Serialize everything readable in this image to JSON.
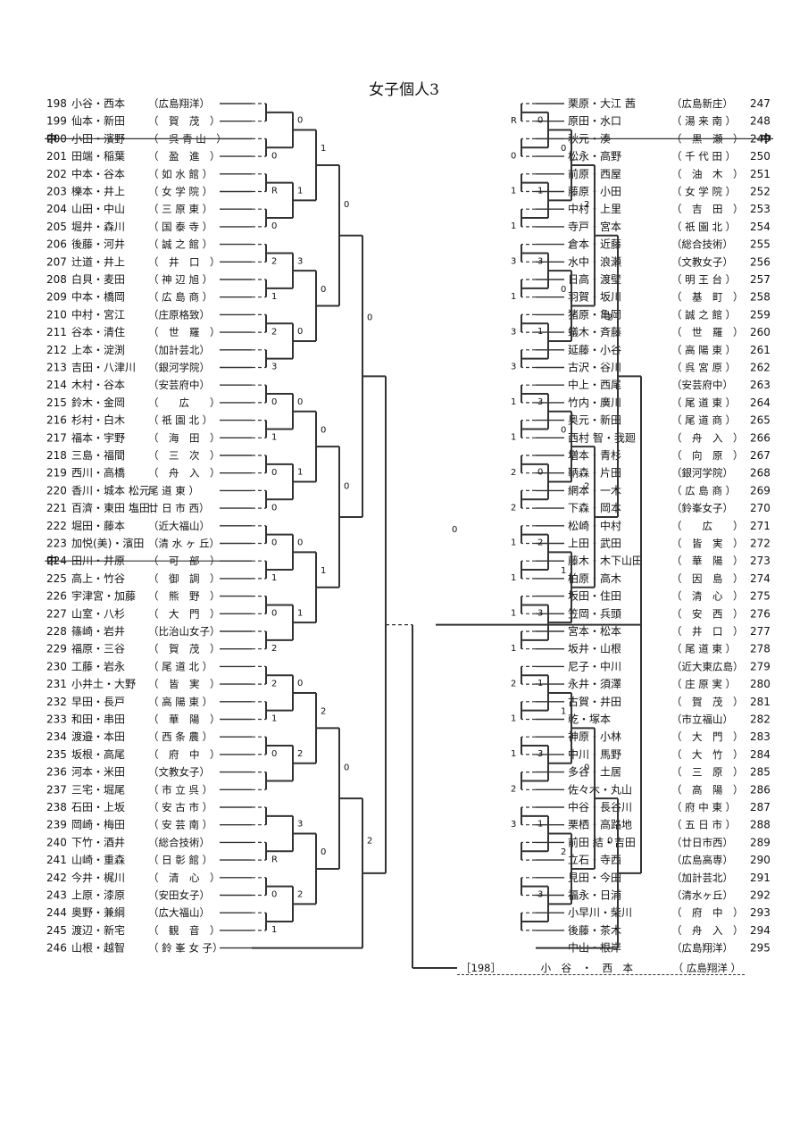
{
  "title": "女子個人3",
  "left": [
    {
      "num": "198",
      "names": "小谷・西本",
      "school": "（広島翔洋）"
    },
    {
      "num": "199",
      "names": "仙本・新田",
      "school": "（　賀　茂　）"
    },
    {
      "num": "200",
      "names": "小田・濱野",
      "school": "（　呉 青 山　）",
      "mark": "中",
      "struck": true
    },
    {
      "num": "201",
      "names": "田端・稲葉",
      "school": "（　盈　進　）"
    },
    {
      "num": "202",
      "names": "中本・谷本",
      "school": "（ 如 水 館 ）"
    },
    {
      "num": "203",
      "names": "櫟本・井上",
      "school": "（ 女 学 院 ）"
    },
    {
      "num": "204",
      "names": "山田・中山",
      "school": "（ 三 原 東 ）"
    },
    {
      "num": "205",
      "names": "堀井・森川",
      "school": "（ 国 泰 寺 ）"
    },
    {
      "num": "206",
      "names": "後藤・河井",
      "school": "（ 誠 之 館 ）"
    },
    {
      "num": "207",
      "names": "辻道・井上",
      "school": "（　井　口　）"
    },
    {
      "num": "208",
      "names": "白貝・麦田",
      "school": "（ 神 辺 旭 ）"
    },
    {
      "num": "209",
      "names": "中本・橋岡",
      "school": "（ 広 島 商 ）"
    },
    {
      "num": "210",
      "names": "中村・宮江",
      "school": "（庄原格致）"
    },
    {
      "num": "211",
      "names": "谷本・清住",
      "school": "（　世　羅　）"
    },
    {
      "num": "212",
      "names": "上本・淀渕",
      "school": "（加計芸北）"
    },
    {
      "num": "213",
      "names": "吉田・八津川",
      "school": "（銀河学院）"
    },
    {
      "num": "214",
      "names": "木村・谷本",
      "school": "（安芸府中）"
    },
    {
      "num": "215",
      "names": "鈴木・金岡",
      "school": "（　　広　　）"
    },
    {
      "num": "216",
      "names": "杉村・白木",
      "school": "（ 祇 園 北 ）"
    },
    {
      "num": "217",
      "names": "福本・宇野",
      "school": "（　海　田　）"
    },
    {
      "num": "218",
      "names": "三島・福間",
      "school": "（　三　次　）"
    },
    {
      "num": "219",
      "names": "西川・高橋",
      "school": "（　舟　入　）"
    },
    {
      "num": "220",
      "names": "香川・城本 松元",
      "school": "尾 道 東 ）"
    },
    {
      "num": "221",
      "names": "百濟・東田 塩田",
      "school": "廿 日 市 西）"
    },
    {
      "num": "222",
      "names": "堀田・藤本",
      "school": "（近大福山）"
    },
    {
      "num": "223",
      "names": "加悦(美)・濱田",
      "school": "（清 水 ヶ 丘）"
    },
    {
      "num": "224",
      "names": "田川・井原",
      "school": "（　可　部　）",
      "mark": "中",
      "struck": true
    },
    {
      "num": "225",
      "names": "高上・竹谷",
      "school": "（　御　調　）"
    },
    {
      "num": "226",
      "names": "宇津宮・加藤",
      "school": "（　熊　野　）"
    },
    {
      "num": "227",
      "names": "山室・八杉",
      "school": "（　大　門　）"
    },
    {
      "num": "228",
      "names": "篠崎・岩井",
      "school": "（比治山女子）"
    },
    {
      "num": "229",
      "names": "福原・三谷",
      "school": "（　賀　茂　）"
    },
    {
      "num": "230",
      "names": "工藤・岩永",
      "school": "（ 尾 道 北 ）"
    },
    {
      "num": "231",
      "names": "小井土・大野",
      "school": "（　皆　実　）"
    },
    {
      "num": "232",
      "names": "早田・長戸",
      "school": "（ 高 陽 東 ）"
    },
    {
      "num": "233",
      "names": "和田・串田",
      "school": "（　華　陽　）"
    },
    {
      "num": "234",
      "names": "渡邉・本田",
      "school": "（ 西 条 農 ）"
    },
    {
      "num": "235",
      "names": "坂根・高尾",
      "school": "（　府　中　）"
    },
    {
      "num": "236",
      "names": "河本・米田",
      "school": "（文教女子）"
    },
    {
      "num": "237",
      "names": "三宅・堀尾",
      "school": "（ 市 立 呉 ）"
    },
    {
      "num": "238",
      "names": "石田・上坂",
      "school": "（ 安 古 市 ）"
    },
    {
      "num": "239",
      "names": "岡崎・梅田",
      "school": "（ 安 芸 南 ）"
    },
    {
      "num": "240",
      "names": "下竹・酒井",
      "school": "（総合技術）"
    },
    {
      "num": "241",
      "names": "山崎・重森",
      "school": "（ 日 彰 館 ）"
    },
    {
      "num": "242",
      "names": "今井・梶川",
      "school": "（　清　心　）"
    },
    {
      "num": "243",
      "names": "上原・漆原",
      "school": "（安田女子）"
    },
    {
      "num": "244",
      "names": "奥野・兼綱",
      "school": "（広大福山）"
    },
    {
      "num": "245",
      "names": "渡辺・新宅",
      "school": "（　観　音　）"
    },
    {
      "num": "246",
      "names": "山根・越智",
      "school": "（ 鈴 峯 女 子）"
    }
  ],
  "right": [
    {
      "num": "247",
      "names": "栗原・大江 茜",
      "school": "（広島新庄）"
    },
    {
      "num": "248",
      "names": "原田・水口",
      "school": "（ 湯 来 南 ）"
    },
    {
      "num": "249",
      "names": "秋元・湊",
      "school": "（　黒　瀬　）",
      "mark": "中",
      "struck": true
    },
    {
      "num": "250",
      "names": "松永・高野",
      "school": "（ 千 代 田 ）"
    },
    {
      "num": "251",
      "names": "前原・西屋",
      "school": "（　油　木　）"
    },
    {
      "num": "252",
      "names": "藤原・小田",
      "school": "（ 女 学 院 ）"
    },
    {
      "num": "253",
      "names": "中村・上里",
      "school": "（　吉　田　）"
    },
    {
      "num": "254",
      "names": "寺戸・宮本",
      "school": "（ 祇 園 北 ）"
    },
    {
      "num": "255",
      "names": "倉本・近藤",
      "school": "（総合技術）"
    },
    {
      "num": "256",
      "names": "水中・浪瀬",
      "school": "（文教女子）"
    },
    {
      "num": "257",
      "names": "日高・渡壁",
      "school": "（ 明 王 台 ）"
    },
    {
      "num": "258",
      "names": "羽賀・坂川",
      "school": "（　基　町　）"
    },
    {
      "num": "259",
      "names": "猪原・亀岡",
      "school": "（ 誠 之 館 ）"
    },
    {
      "num": "260",
      "names": "蟻木・斉藤",
      "school": "（　世　羅　）"
    },
    {
      "num": "261",
      "names": "延藤・小谷",
      "school": "（ 高 陽 東 ）"
    },
    {
      "num": "262",
      "names": "古沢・谷川",
      "school": "（ 呉 宮 原 ）"
    },
    {
      "num": "263",
      "names": "中上・西尾",
      "school": "（安芸府中）"
    },
    {
      "num": "264",
      "names": "竹内・廣川",
      "school": "（ 尾 道 東 ）"
    },
    {
      "num": "265",
      "names": "奥元・新田",
      "school": "（ 尾 道 商 ）"
    },
    {
      "num": "266",
      "names": "西村 智・我廻",
      "school": "（　舟　入　）"
    },
    {
      "num": "267",
      "names": "増本・青杉",
      "school": "（　向　原　）"
    },
    {
      "num": "268",
      "names": "鞆森・片田",
      "school": "（銀河学院）"
    },
    {
      "num": "269",
      "names": "網本・一木",
      "school": "（ 広 島 商 ）"
    },
    {
      "num": "270",
      "names": "下森・岡本",
      "school": "（鈴峯女子）"
    },
    {
      "num": "271",
      "names": "松崎・中村",
      "school": "（　　広　　）"
    },
    {
      "num": "272",
      "names": "上田・武田",
      "school": "（　皆　実　）"
    },
    {
      "num": "273",
      "names": "藤木・木下山田",
      "school": "（　華　陽　）"
    },
    {
      "num": "274",
      "names": "柏原・高木",
      "school": "（　因　島　）"
    },
    {
      "num": "275",
      "names": "坂田・住田",
      "school": "（　清　心　）"
    },
    {
      "num": "276",
      "names": "笠岡・兵頭",
      "school": "（　安　西　）"
    },
    {
      "num": "277",
      "names": "宮本・松本",
      "school": "（　井　口　）"
    },
    {
      "num": "278",
      "names": "坂井・山根",
      "school": "（ 尾 道 東 ）"
    },
    {
      "num": "279",
      "names": "尼子・中川",
      "school": "（近大東広島）"
    },
    {
      "num": "280",
      "names": "永井・須澤",
      "school": "（ 庄 原 実 ）"
    },
    {
      "num": "281",
      "names": "古賀・井田",
      "school": "（　賀　茂　）"
    },
    {
      "num": "282",
      "names": "乾・塚本",
      "school": "（市立福山）"
    },
    {
      "num": "283",
      "names": "神原・小林",
      "school": "（　大　門　）"
    },
    {
      "num": "284",
      "names": "中川・馬野",
      "school": "（　大　竹　）"
    },
    {
      "num": "285",
      "names": "多谷・土居",
      "school": "（　三　原　）"
    },
    {
      "num": "286",
      "names": "佐々木・丸山",
      "school": "（　高　陽　）"
    },
    {
      "num": "287",
      "names": "中谷・長谷川",
      "school": "（ 府 中 東 ）"
    },
    {
      "num": "288",
      "names": "栗栖・高路地",
      "school": "（ 五 日 市 ）"
    },
    {
      "num": "289",
      "names": "前田 結・吉田",
      "school": "（廿日市西）"
    },
    {
      "num": "290",
      "names": "立石・寺西",
      "school": "（広島高専）"
    },
    {
      "num": "291",
      "names": "見田・今田",
      "school": "（加計芸北）"
    },
    {
      "num": "292",
      "names": "福永・日浦",
      "school": "（清水ヶ丘）"
    },
    {
      "num": "293",
      "names": "小早川・柴川",
      "school": "（　府　中　）"
    },
    {
      "num": "294",
      "names": "後藤・茶木",
      "school": "（　舟　入　）"
    },
    {
      "num": "295",
      "names": "中山・根岸",
      "school": "（広島翔洋）"
    }
  ],
  "r1_left": [
    "",
    "0",
    "R",
    "0",
    "2",
    "1",
    "2",
    "3",
    "0",
    "1",
    "0",
    "0",
    "0",
    "1",
    "0",
    "2",
    "2",
    "1",
    "0",
    "",
    "",
    "R",
    "0",
    "1",
    "2",
    "2",
    "3",
    "1",
    "0",
    "0",
    "1",
    "2",
    "1",
    "2",
    "0",
    "0",
    "0",
    "2",
    "1",
    "0",
    "2",
    "1",
    "2"
  ],
  "scores_left": {
    "r2": [
      "0",
      "1",
      "3",
      "0",
      "0",
      "1",
      "0",
      "1",
      "0",
      "2",
      "3",
      "2",
      "1",
      "2",
      "0",
      "0"
    ],
    "r3": [
      "1",
      "0",
      "0",
      "1",
      "2",
      "0",
      "2",
      "0"
    ],
    "r4": [
      "0",
      "0",
      "0",
      "2"
    ],
    "r5": [
      "0",
      "2"
    ]
  },
  "r1_right": [
    "R",
    "0",
    "1",
    "1",
    "3",
    "1",
    "3",
    "3",
    "1",
    "1",
    "2",
    "2",
    "1",
    "1",
    "1",
    "1",
    "2",
    "1",
    "1",
    "2",
    "3"
  ],
  "scores_right": {
    "r2": [
      "0",
      "1",
      "3",
      "1",
      "3",
      "0",
      "2",
      "3",
      "1",
      "3",
      "1",
      "3",
      "1",
      "3",
      "1",
      "0"
    ],
    "r3": [
      "0",
      "0",
      "0",
      "1",
      "1",
      "2",
      "1",
      "1"
    ],
    "r4": [
      "2",
      "2",
      "0",
      "1"
    ],
    "r5": [
      "2",
      "0"
    ]
  },
  "center_score": "0",
  "final": {
    "num": "［198］",
    "names": "小　谷　・　西　本",
    "school": "（ 広島翔洋 ）"
  }
}
